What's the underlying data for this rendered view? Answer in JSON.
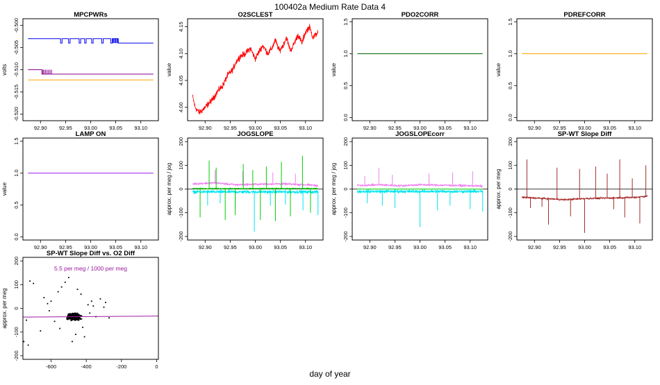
{
  "page": {
    "title": "100402a   Medium Rate Data 4",
    "footer_label": "day of year"
  },
  "chart_data": [
    {
      "type": "line",
      "title": "MPCPWRs",
      "ylabel": "volts",
      "xlim": [
        92.865,
        93.135
      ],
      "ylim": [
        -0.5215,
        -0.4985
      ],
      "xticks": [
        92.9,
        92.95,
        93.0,
        93.05,
        93.1
      ],
      "xtick_labels": [
        "92.90",
        "92.95",
        "93.00",
        "93.05",
        "93.10"
      ],
      "yticks": [
        -0.52,
        -0.515,
        -0.51,
        -0.505,
        -0.5
      ],
      "ytick_labels": [
        "-0.520",
        "-0.515",
        "-0.510",
        "-0.505",
        "-0.500"
      ],
      "series": [
        {
          "name": "blue",
          "color": "#0000ee",
          "style": "step",
          "base": -0.504,
          "high": -0.503,
          "x": [
            92.875,
            92.94,
            92.943,
            92.956,
            92.959,
            92.977,
            92.98,
            92.988,
            92.991,
            93.002,
            93.005,
            93.022,
            93.025,
            93.04,
            93.043,
            93.055,
            93.125
          ],
          "values": [
            -0.503,
            -0.504,
            -0.503,
            -0.504,
            -0.503,
            -0.504,
            -0.503,
            -0.504,
            -0.503,
            -0.504,
            -0.503,
            -0.504,
            -0.503,
            -0.504,
            -0.503,
            -0.504,
            -0.504
          ],
          "spikes": [
            93.044,
            93.046,
            93.048,
            93.05,
            93.052,
            93.054
          ]
        },
        {
          "name": "purple",
          "color": "#8b008b",
          "style": "step",
          "base": -0.511,
          "high": -0.51,
          "x": [
            92.875,
            92.903,
            93.125
          ],
          "values": [
            -0.51,
            -0.511,
            -0.511
          ],
          "spikes": [
            92.903,
            92.905,
            92.907,
            92.91,
            92.913,
            92.916,
            92.919,
            92.922
          ]
        },
        {
          "name": "orange",
          "color": "#ffa500",
          "style": "flat",
          "x": [
            92.875,
            93.125
          ],
          "values": [
            -0.5123,
            -0.5123
          ]
        }
      ]
    },
    {
      "type": "line",
      "title": "O2SCLEST",
      "ylabel": "value",
      "xlim": [
        92.865,
        93.135
      ],
      "ylim": [
        3.975,
        4.165
      ],
      "xticks": [
        92.9,
        92.95,
        93.0,
        93.05,
        93.1
      ],
      "xtick_labels": [
        "92.90",
        "92.95",
        "93.00",
        "93.05",
        "93.10"
      ],
      "yticks": [
        4.0,
        4.05,
        4.1,
        4.15
      ],
      "ytick_labels": [
        "4.00",
        "4.05",
        "4.10",
        "4.15"
      ],
      "series": [
        {
          "name": "O2SCLEST",
          "color": "#ff0000",
          "style": "noisy",
          "noise": 0.008,
          "x": [
            92.875,
            92.88,
            92.888,
            92.895,
            92.905,
            92.915,
            92.925,
            92.935,
            92.945,
            92.955,
            92.962,
            92.97,
            92.98,
            92.99,
            93.0,
            93.008,
            93.015,
            93.025,
            93.033,
            93.04,
            93.048,
            93.055,
            93.062,
            93.07,
            93.078,
            93.085,
            93.093,
            93.1,
            93.108,
            93.115,
            93.12,
            93.125
          ],
          "values": [
            4.02,
            4.0,
            3.99,
            3.995,
            4.005,
            4.015,
            4.03,
            4.04,
            4.06,
            4.07,
            4.085,
            4.095,
            4.1,
            4.11,
            4.09,
            4.105,
            4.115,
            4.1,
            4.11,
            4.125,
            4.105,
            4.115,
            4.13,
            4.105,
            4.12,
            4.135,
            4.12,
            4.14,
            4.15,
            4.13,
            4.135,
            4.14
          ]
        }
      ]
    },
    {
      "type": "line",
      "title": "PDO2CORR",
      "ylabel": "value",
      "xlim": [
        92.865,
        93.135
      ],
      "ylim": [
        -0.05,
        1.55
      ],
      "xticks": [
        92.9,
        92.95,
        93.0,
        93.05,
        93.1
      ],
      "xtick_labels": [
        "92.90",
        "92.95",
        "93.00",
        "93.05",
        "93.10"
      ],
      "yticks": [
        0.0,
        0.5,
        1.0,
        1.5
      ],
      "ytick_labels": [
        "0.0",
        "0.5",
        "1.0",
        "1.5"
      ],
      "series": [
        {
          "name": "PDO2CORR",
          "color": "#006400",
          "style": "flat",
          "x": [
            92.875,
            93.125
          ],
          "values": [
            1.0,
            1.0
          ]
        }
      ]
    },
    {
      "type": "line",
      "title": "PDREFCORR",
      "ylabel": "value",
      "xlim": [
        92.865,
        93.135
      ],
      "ylim": [
        -0.05,
        1.55
      ],
      "xticks": [
        92.9,
        92.95,
        93.0,
        93.05,
        93.1
      ],
      "xtick_labels": [
        "92.90",
        "92.95",
        "93.00",
        "93.05",
        "93.10"
      ],
      "yticks": [
        0.0,
        0.5,
        1.0,
        1.5
      ],
      "ytick_labels": [
        "0.0",
        "0.5",
        "1.0",
        "1.5"
      ],
      "series": [
        {
          "name": "PDREFCORR",
          "color": "#ffa500",
          "style": "flat",
          "x": [
            92.875,
            93.125
          ],
          "values": [
            1.0,
            1.0
          ]
        }
      ]
    },
    {
      "type": "line",
      "title": "LAMP ON",
      "ylabel": "value",
      "xlim": [
        92.865,
        93.135
      ],
      "ylim": [
        -0.05,
        1.55
      ],
      "xticks": [
        92.9,
        92.95,
        93.0,
        93.05,
        93.1
      ],
      "xtick_labels": [
        "92.90",
        "92.95",
        "93.00",
        "93.05",
        "93.10"
      ],
      "yticks": [
        0.0,
        0.5,
        1.0,
        1.5
      ],
      "ytick_labels": [
        "0.0",
        "0.5",
        "1.0",
        "1.5"
      ],
      "series": [
        {
          "name": "LAMP ON",
          "color": "#a020f0",
          "style": "flat",
          "x": [
            92.875,
            93.125
          ],
          "values": [
            1.0,
            1.0
          ]
        }
      ]
    },
    {
      "type": "line",
      "title": "JOGSLOPE",
      "ylabel": "approx. per meg / jog",
      "xlim": [
        92.865,
        93.135
      ],
      "ylim": [
        -215,
        215
      ],
      "xticks": [
        92.9,
        92.95,
        93.0,
        93.05,
        93.1
      ],
      "xtick_labels": [
        "92.90",
        "92.95",
        "93.00",
        "93.05",
        "93.10"
      ],
      "yticks": [
        -200,
        -100,
        0,
        100,
        200
      ],
      "ytick_labels": [
        "-200",
        "-100",
        "0",
        "100",
        "200"
      ],
      "hline": 0,
      "series": [
        {
          "name": "cyan",
          "color": "#00e5ee",
          "style": "noisy",
          "noise": 10,
          "x": [
            92.875,
            93.125
          ],
          "values": [
            -12,
            -12
          ],
          "spikes": [
            [
              92.905,
              -70
            ],
            [
              92.93,
              -60
            ],
            [
              92.96,
              -80
            ],
            [
              92.998,
              -180
            ],
            [
              93.03,
              -70
            ],
            [
              93.06,
              -65
            ],
            [
              93.095,
              -90
            ],
            [
              93.125,
              -110
            ]
          ]
        },
        {
          "name": "violet",
          "color": "#ee82ee",
          "style": "noisy",
          "noise": 7,
          "x": [
            92.875,
            92.92,
            92.96,
            93.0,
            93.05,
            93.1,
            93.125
          ],
          "values": [
            22,
            26,
            18,
            20,
            22,
            18,
            15
          ],
          "spikes": [
            [
              92.92,
              80
            ],
            [
              92.975,
              75
            ],
            [
              93.035,
              70
            ],
            [
              93.08,
              65
            ]
          ]
        },
        {
          "name": "green",
          "color": "#00cc00",
          "style": "noisy",
          "noise": 4,
          "x": [
            92.875,
            93.125
          ],
          "values": [
            2,
            2
          ],
          "spikes": [
            [
              92.89,
              -120
            ],
            [
              92.908,
              120
            ],
            [
              92.922,
              90
            ],
            [
              92.94,
              -130
            ],
            [
              92.96,
              -110
            ],
            [
              92.976,
              105
            ],
            [
              92.995,
              80
            ],
            [
              93.01,
              -130
            ],
            [
              93.022,
              95
            ],
            [
              93.04,
              -135
            ],
            [
              93.052,
              115
            ],
            [
              93.07,
              -115
            ],
            [
              93.094,
              140
            ],
            [
              93.11,
              -100
            ]
          ]
        }
      ]
    },
    {
      "type": "line",
      "title": "JOGSLOPEcorr",
      "ylabel": "approx. per meg / jog",
      "xlim": [
        92.865,
        93.135
      ],
      "ylim": [
        -215,
        215
      ],
      "xticks": [
        92.9,
        92.95,
        93.0,
        93.05,
        93.1
      ],
      "xtick_labels": [
        "92.90",
        "92.95",
        "93.00",
        "93.05",
        "93.10"
      ],
      "yticks": [
        -200,
        -100,
        0,
        100,
        200
      ],
      "ytick_labels": [
        "-200",
        "-100",
        "0",
        "100",
        "200"
      ],
      "hline": 0,
      "series": [
        {
          "name": "cyan",
          "color": "#00e5ee",
          "style": "noisy",
          "noise": 10,
          "x": [
            92.875,
            93.125
          ],
          "values": [
            -10,
            -10
          ],
          "spikes": [
            [
              92.895,
              -60
            ],
            [
              92.925,
              -70
            ],
            [
              92.95,
              -80
            ],
            [
              93.0,
              -160
            ],
            [
              93.035,
              -90
            ],
            [
              93.06,
              -70
            ],
            [
              93.1,
              -85
            ],
            [
              93.125,
              -95
            ]
          ]
        },
        {
          "name": "violet",
          "color": "#ee82ee",
          "style": "noisy",
          "noise": 7,
          "x": [
            92.875,
            92.92,
            92.96,
            93.0,
            93.05,
            93.1,
            93.125
          ],
          "values": [
            15,
            18,
            14,
            18,
            16,
            14,
            12
          ],
          "spikes": [
            [
              92.89,
              55
            ],
            [
              92.918,
              90
            ],
            [
              92.945,
              60
            ],
            [
              93.018,
              65
            ],
            [
              93.065,
              70
            ],
            [
              93.105,
              75
            ]
          ]
        },
        {
          "name": "green",
          "color": "#00cc00",
          "style": "flat",
          "x": [
            92.875,
            93.125
          ],
          "values": [
            0,
            0
          ]
        }
      ]
    },
    {
      "type": "line",
      "title": "SP-WT Slope Diff",
      "ylabel": "approx. per meg",
      "xlim": [
        92.865,
        93.135
      ],
      "ylim": [
        -215,
        215
      ],
      "xticks": [
        92.9,
        92.95,
        93.0,
        93.05,
        93.1
      ],
      "xtick_labels": [
        "92.90",
        "92.95",
        "93.00",
        "93.05",
        "93.10"
      ],
      "yticks": [
        -200,
        -100,
        0,
        100,
        200
      ],
      "ytick_labels": [
        "-200",
        "-100",
        "0",
        "100",
        "200"
      ],
      "hline": 0,
      "series": [
        {
          "name": "SP-WT",
          "color": "#a52a2a",
          "style": "noisy",
          "noise": 6,
          "x": [
            92.875,
            92.92,
            92.96,
            93.0,
            93.05,
            93.1,
            93.125
          ],
          "values": [
            -35,
            -40,
            -45,
            -40,
            -38,
            -35,
            -30
          ],
          "spikes": [
            [
              92.885,
              125
            ],
            [
              92.892,
              -80
            ],
            [
              92.915,
              -75
            ],
            [
              92.928,
              -150
            ],
            [
              92.945,
              90
            ],
            [
              92.972,
              -115
            ],
            [
              92.99,
              85
            ],
            [
              93.0,
              -185
            ],
            [
              93.022,
              95
            ],
            [
              93.045,
              65
            ],
            [
              93.058,
              -85
            ],
            [
              93.07,
              125
            ],
            [
              93.08,
              -120
            ],
            [
              93.095,
              45
            ],
            [
              93.11,
              -145
            ],
            [
              93.122,
              100
            ]
          ]
        }
      ]
    },
    {
      "type": "scatter",
      "title": "SP-WT Slope Diff vs. O2 Diff",
      "ylabel": "approx. per meg",
      "annotation": "5.5 per meg / 1000 per meg",
      "annotation_color": "#9b1a9b",
      "xlim": [
        -760,
        10
      ],
      "ylim": [
        -215,
        215
      ],
      "xticks": [
        -600,
        -400,
        -200,
        0
      ],
      "xtick_labels": [
        "-600",
        "-400",
        "-200",
        "0"
      ],
      "yticks": [
        -200,
        -100,
        0,
        100,
        200
      ],
      "ytick_labels": [
        "-200",
        "-100",
        "0",
        "100",
        "200"
      ],
      "fit": {
        "color": "#9b1a9b",
        "x": [
          -760,
          10
        ],
        "y": [
          -36.9,
          -32.7
        ]
      },
      "cluster": {
        "x_center": -470,
        "x_spread": 45,
        "y_center": -35,
        "y_spread": 18,
        "count": 700
      },
      "outliers": [
        [
          -720,
          115
        ],
        [
          -700,
          105
        ],
        [
          -740,
          -50
        ],
        [
          -755,
          -140
        ],
        [
          -730,
          -155
        ],
        [
          -660,
          -95
        ],
        [
          -640,
          45
        ],
        [
          -620,
          20
        ],
        [
          -610,
          -10
        ],
        [
          -600,
          30
        ],
        [
          -560,
          70
        ],
        [
          -540,
          90
        ],
        [
          -520,
          110
        ],
        [
          -500,
          130
        ],
        [
          -480,
          -140
        ],
        [
          -460,
          -110
        ],
        [
          -450,
          80
        ],
        [
          -430,
          60
        ],
        [
          -420,
          -80
        ],
        [
          -410,
          -120
        ],
        [
          -390,
          15
        ],
        [
          -380,
          -20
        ],
        [
          -370,
          30
        ],
        [
          -360,
          10
        ],
        [
          -345,
          -35
        ],
        [
          -320,
          40
        ],
        [
          -300,
          5
        ],
        [
          -290,
          25
        ],
        [
          -270,
          -40
        ],
        [
          -550,
          -85
        ],
        [
          -580,
          -55
        ]
      ]
    }
  ]
}
